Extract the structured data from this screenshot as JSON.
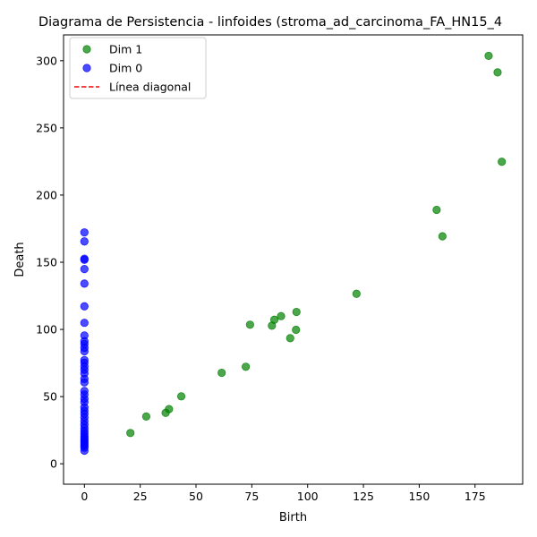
{
  "chart_data": {
    "type": "scatter",
    "title": "Diagrama de Persistencia - linfoides (stroma_ad_carcinoma_FA_HN15_4",
    "xlabel": "Birth",
    "ylabel": "Death",
    "xlim": [
      -9.35,
      196.35
    ],
    "ylim": [
      -15.2,
      319.2
    ],
    "xticks": [
      0,
      25,
      50,
      75,
      100,
      125,
      150,
      175
    ],
    "yticks": [
      0,
      50,
      100,
      150,
      200,
      250,
      300
    ],
    "grid": false,
    "legend_position": "top-left",
    "series": [
      {
        "name": "Dim 1",
        "color": "#008000",
        "marker": "circle",
        "points": [
          [
            20.6,
            22.9
          ],
          [
            27.7,
            35.2
          ],
          [
            36.4,
            37.9
          ],
          [
            37.9,
            40.7
          ],
          [
            43.4,
            50.2
          ],
          [
            61.5,
            67.7
          ],
          [
            72.3,
            72.2
          ],
          [
            74.2,
            103.5
          ],
          [
            84.0,
            102.8
          ],
          [
            85.1,
            107.2
          ],
          [
            88.1,
            109.9
          ],
          [
            92.2,
            93.5
          ],
          [
            94.8,
            99.7
          ],
          [
            95.0,
            113.0
          ],
          [
            121.9,
            126.5
          ],
          [
            157.8,
            189.0
          ],
          [
            160.4,
            169.3
          ],
          [
            181.1,
            303.6
          ],
          [
            185.1,
            291.3
          ],
          [
            187.0,
            224.8
          ]
        ]
      },
      {
        "name": "Dim 0",
        "color": "#0000ff",
        "marker": "circle",
        "points": [
          [
            0,
            9.8
          ],
          [
            0,
            12.0
          ],
          [
            0,
            13.3
          ],
          [
            0,
            14.5
          ],
          [
            0,
            15.7
          ],
          [
            0,
            16.9
          ],
          [
            0,
            18.2
          ],
          [
            0,
            19.4
          ],
          [
            0,
            20.8
          ],
          [
            0,
            22.5
          ],
          [
            0,
            24.3
          ],
          [
            0,
            26.5
          ],
          [
            0,
            29.0
          ],
          [
            0,
            31.8
          ],
          [
            0,
            34.5
          ],
          [
            0,
            37.2
          ],
          [
            0,
            39.5
          ],
          [
            0,
            42.0
          ],
          [
            0,
            45.8
          ],
          [
            0,
            48.3
          ],
          [
            0,
            51.5
          ],
          [
            0,
            54.2
          ],
          [
            0,
            60.6
          ],
          [
            0,
            63.2
          ],
          [
            0,
            67.2
          ],
          [
            0,
            70.0
          ],
          [
            0,
            72.5
          ],
          [
            0,
            75.2
          ],
          [
            0,
            77.2
          ],
          [
            0,
            83.7
          ],
          [
            0,
            86.3
          ],
          [
            0,
            89.1
          ],
          [
            0,
            91.2
          ],
          [
            0,
            95.5
          ],
          [
            0,
            104.9
          ],
          [
            0,
            117.2
          ],
          [
            0,
            134.1
          ],
          [
            0,
            144.9
          ],
          [
            0,
            151.8
          ],
          [
            0,
            152.6
          ],
          [
            0,
            165.5
          ],
          [
            0,
            172.2
          ]
        ]
      },
      {
        "name": "Línea diagonal",
        "color": "#ff0000",
        "style": "dashed",
        "points": []
      }
    ]
  }
}
